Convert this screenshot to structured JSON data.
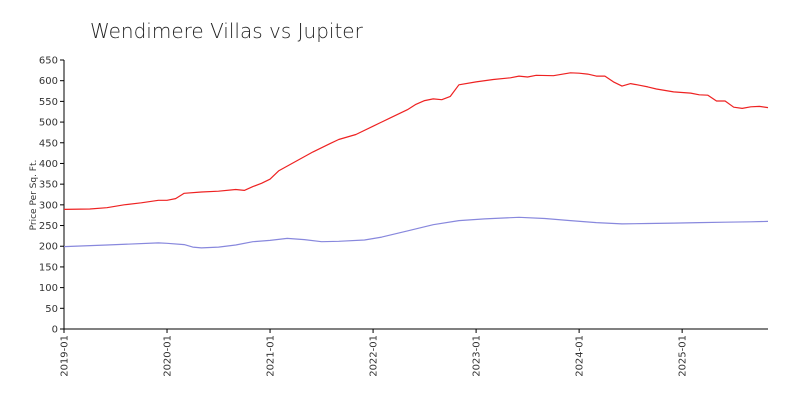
{
  "chart_data": {
    "type": "line",
    "title": "Wendimere Villas vs Jupiter",
    "ylabel": "Price Per Sq. Ft.",
    "xlabel": "",
    "ylim": [
      0,
      650
    ],
    "yticks": [
      0,
      50,
      100,
      150,
      200,
      250,
      300,
      350,
      400,
      450,
      500,
      550,
      600,
      650
    ],
    "xlim": [
      "2019-01",
      "2025-11"
    ],
    "xticks": [
      "2019-01",
      "2020-01",
      "2021-01",
      "2022-01",
      "2023-01",
      "2024-01",
      "2025-01"
    ],
    "grid": false,
    "legend": "none",
    "series": [
      {
        "color": "#ee2222",
        "points": [
          [
            "2019-01",
            289
          ],
          [
            "2019-04",
            290
          ],
          [
            "2019-06",
            293
          ],
          [
            "2019-08",
            300
          ],
          [
            "2019-10",
            305
          ],
          [
            "2019-12",
            311
          ],
          [
            "2020-01",
            311
          ],
          [
            "2020-02",
            315
          ],
          [
            "2020-03",
            328
          ],
          [
            "2020-05",
            331
          ],
          [
            "2020-07",
            333
          ],
          [
            "2020-09",
            337
          ],
          [
            "2020-10",
            335
          ],
          [
            "2020-11",
            344
          ],
          [
            "2020-12",
            352
          ],
          [
            "2021-01",
            362
          ],
          [
            "2021-02",
            382
          ],
          [
            "2021-04",
            405
          ],
          [
            "2021-06",
            428
          ],
          [
            "2021-08",
            448
          ],
          [
            "2021-09",
            458
          ],
          [
            "2021-11",
            470
          ],
          [
            "2022-01",
            490
          ],
          [
            "2022-03",
            510
          ],
          [
            "2022-05",
            530
          ],
          [
            "2022-06",
            543
          ],
          [
            "2022-07",
            552
          ],
          [
            "2022-08",
            556
          ],
          [
            "2022-09",
            554
          ],
          [
            "2022-10",
            562
          ],
          [
            "2022-11",
            590
          ],
          [
            "2023-01",
            597
          ],
          [
            "2023-03",
            603
          ],
          [
            "2023-05",
            607
          ],
          [
            "2023-06",
            611
          ],
          [
            "2023-07",
            609
          ],
          [
            "2023-08",
            613
          ],
          [
            "2023-10",
            612
          ],
          [
            "2023-12",
            619
          ],
          [
            "2024-01",
            618
          ],
          [
            "2024-02",
            616
          ],
          [
            "2024-03",
            611
          ],
          [
            "2024-04",
            611
          ],
          [
            "2024-05",
            597
          ],
          [
            "2024-06",
            587
          ],
          [
            "2024-07",
            593
          ],
          [
            "2024-08",
            589
          ],
          [
            "2024-09",
            585
          ],
          [
            "2024-10",
            580
          ],
          [
            "2024-12",
            573
          ],
          [
            "2025-02",
            570
          ],
          [
            "2025-03",
            566
          ],
          [
            "2025-04",
            565
          ],
          [
            "2025-05",
            551
          ],
          [
            "2025-06",
            551
          ],
          [
            "2025-07",
            536
          ],
          [
            "2025-08",
            533
          ],
          [
            "2025-09",
            537
          ],
          [
            "2025-10",
            538
          ],
          [
            "2025-11",
            535
          ]
        ]
      },
      {
        "color": "#8888dd",
        "points": [
          [
            "2019-01",
            199
          ],
          [
            "2019-06",
            203
          ],
          [
            "2019-12",
            208
          ],
          [
            "2020-01",
            207
          ],
          [
            "2020-03",
            204
          ],
          [
            "2020-04",
            198
          ],
          [
            "2020-05",
            196
          ],
          [
            "2020-07",
            198
          ],
          [
            "2020-09",
            203
          ],
          [
            "2020-11",
            211
          ],
          [
            "2021-01",
            214
          ],
          [
            "2021-03",
            219
          ],
          [
            "2021-05",
            216
          ],
          [
            "2021-07",
            211
          ],
          [
            "2021-09",
            212
          ],
          [
            "2021-12",
            215
          ],
          [
            "2022-02",
            222
          ],
          [
            "2022-05",
            237
          ],
          [
            "2022-08",
            252
          ],
          [
            "2022-11",
            262
          ],
          [
            "2023-02",
            266
          ],
          [
            "2023-05",
            269
          ],
          [
            "2023-06",
            270
          ],
          [
            "2023-09",
            267
          ],
          [
            "2023-12",
            262
          ],
          [
            "2024-03",
            257
          ],
          [
            "2024-06",
            254
          ],
          [
            "2024-09",
            255
          ],
          [
            "2024-12",
            256
          ],
          [
            "2025-03",
            257
          ],
          [
            "2025-06",
            258
          ],
          [
            "2025-09",
            259
          ],
          [
            "2025-11",
            260
          ]
        ]
      }
    ]
  }
}
